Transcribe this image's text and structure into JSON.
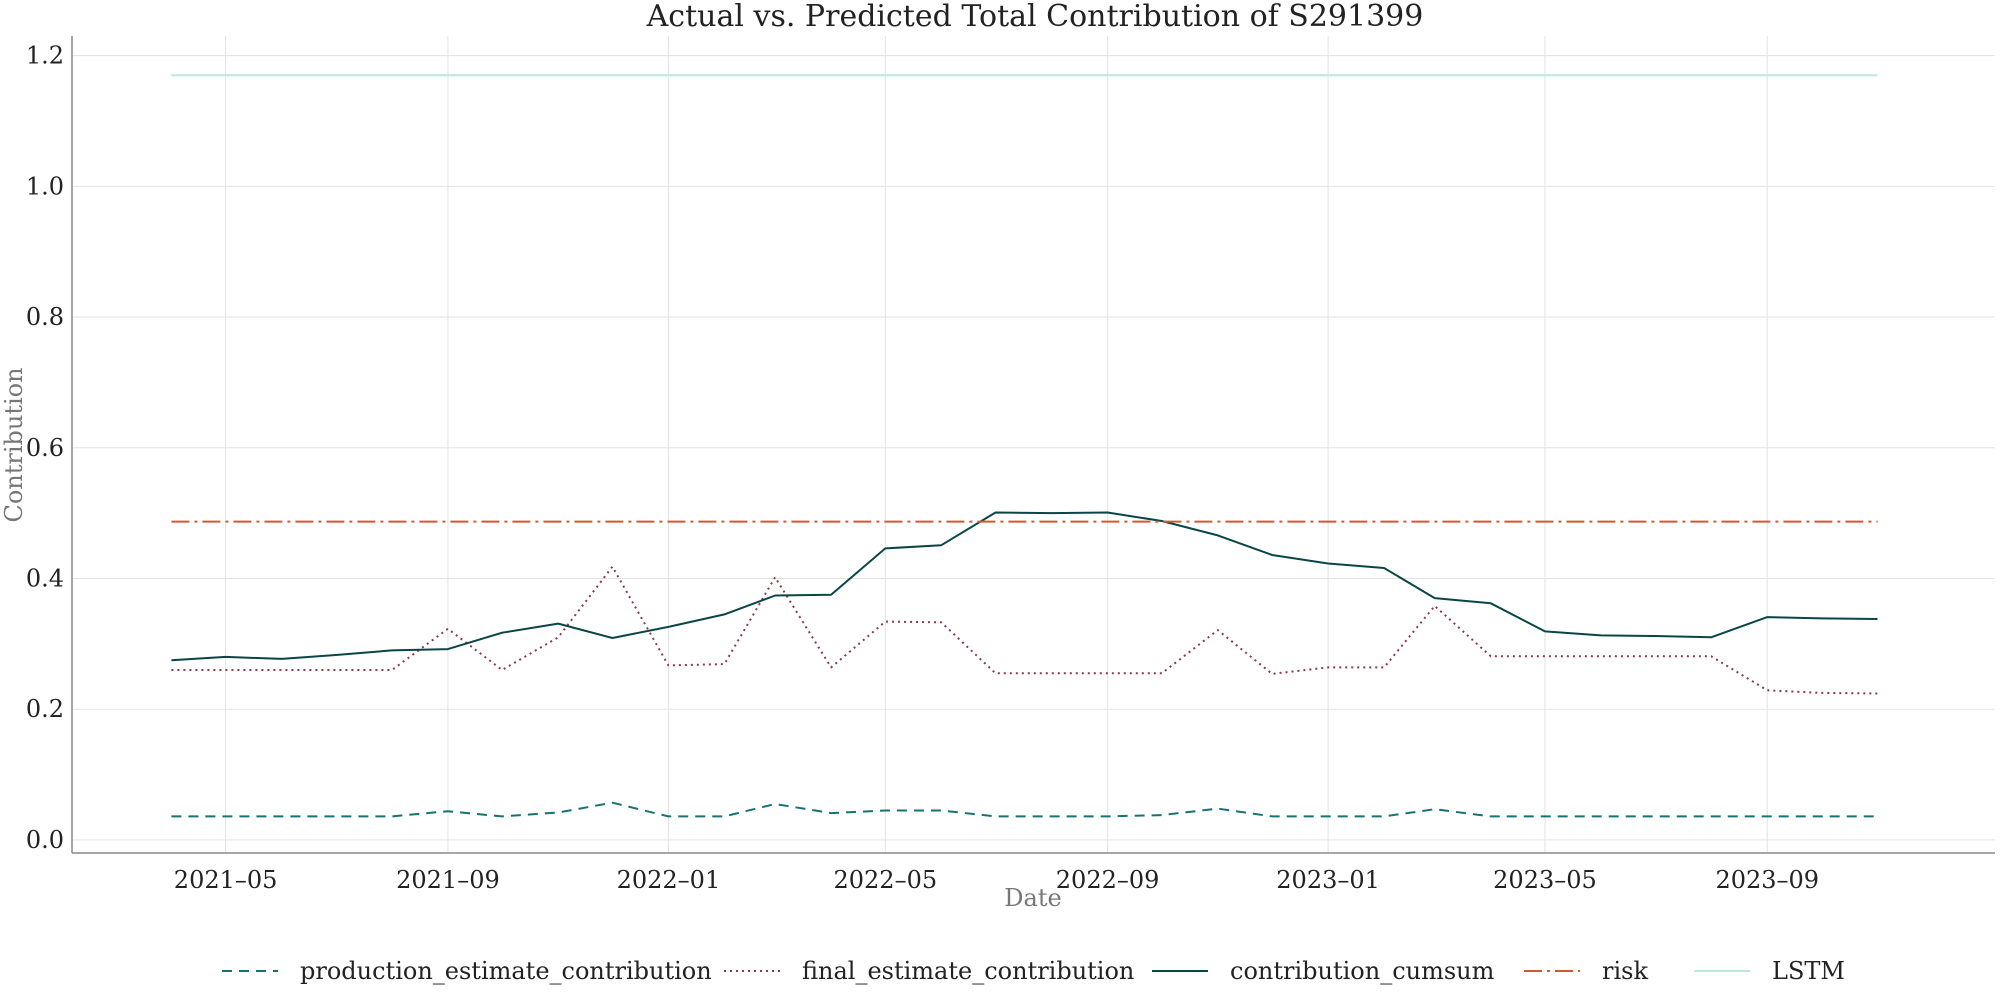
{
  "chart_data": {
    "type": "line",
    "title": "Actual vs. Predicted Total Contribution of S291399",
    "xlabel": "Date",
    "ylabel": "Contribution",
    "ylim": [
      -0.02,
      1.23
    ],
    "y_ticks": [
      0.0,
      0.2,
      0.4,
      0.6,
      0.8,
      1.0,
      1.2
    ],
    "y_tick_labels": [
      "0.0",
      "0.2",
      "0.4",
      "0.6",
      "0.8",
      "1.0",
      "1.2"
    ],
    "x_ticks": [
      "2021-05-01",
      "2021-09-01",
      "2022-01-01",
      "2022-05-01",
      "2022-09-01",
      "2023-01-01",
      "2023-05-01",
      "2023-09-01"
    ],
    "x_tick_labels": [
      "2021–05",
      "2021–09",
      "2022–01",
      "2022–05",
      "2022–09",
      "2023–01",
      "2023–05",
      "2023–09"
    ],
    "xlim": [
      "2021-02-05",
      "2024-01-05"
    ],
    "grid": true,
    "legend_position": "bottom",
    "x": [
      "2021-04-01",
      "2021-05-01",
      "2021-06-01",
      "2021-07-01",
      "2021-08-01",
      "2021-09-01",
      "2021-10-01",
      "2021-11-01",
      "2021-12-01",
      "2022-01-01",
      "2022-02-01",
      "2022-03-01",
      "2022-04-01",
      "2022-05-01",
      "2022-06-01",
      "2022-07-01",
      "2022-08-01",
      "2022-09-01",
      "2022-10-01",
      "2022-11-01",
      "2022-12-01",
      "2023-01-01",
      "2023-02-01",
      "2023-03-01",
      "2023-04-01",
      "2023-05-01",
      "2023-06-01",
      "2023-07-01",
      "2023-08-01",
      "2023-09-01",
      "2023-10-01",
      "2023-11-01"
    ],
    "series": [
      {
        "name": "production_estimate_contribution",
        "color": "#177373",
        "dash": "10,7",
        "values": [
          0.036,
          0.036,
          0.036,
          0.036,
          0.036,
          0.044,
          0.036,
          0.042,
          0.057,
          0.036,
          0.036,
          0.055,
          0.041,
          0.045,
          0.045,
          0.036,
          0.036,
          0.036,
          0.038,
          0.048,
          0.036,
          0.036,
          0.036,
          0.047,
          0.036,
          0.036,
          0.036,
          0.036,
          0.036,
          0.036,
          0.036,
          0.036
        ]
      },
      {
        "name": "final_estimate_contribution",
        "color": "#8a3a4a",
        "dash": "2,4",
        "values": [
          0.26,
          0.26,
          0.26,
          0.26,
          0.26,
          0.323,
          0.26,
          0.31,
          0.418,
          0.267,
          0.269,
          0.402,
          0.264,
          0.334,
          0.333,
          0.255,
          0.255,
          0.255,
          0.255,
          0.321,
          0.254,
          0.264,
          0.264,
          0.358,
          0.281,
          0.281,
          0.281,
          0.281,
          0.281,
          0.229,
          0.225,
          0.224
        ]
      },
      {
        "name": "contribution_cumsum",
        "color": "#0a4646",
        "dash": "",
        "values": [
          0.275,
          0.28,
          0.277,
          0.283,
          0.29,
          0.292,
          0.317,
          0.331,
          0.309,
          0.326,
          0.345,
          0.374,
          0.375,
          0.446,
          0.451,
          0.501,
          0.5,
          0.501,
          0.488,
          0.466,
          0.436,
          0.423,
          0.416,
          0.37,
          0.362,
          0.319,
          0.313,
          0.312,
          0.31,
          0.341,
          0.339,
          0.338
        ]
      },
      {
        "name": "risk",
        "color": "#d05a30",
        "dash": "18,5,3,5",
        "values": [
          0.487,
          0.487,
          0.487,
          0.487,
          0.487,
          0.487,
          0.487,
          0.487,
          0.487,
          0.487,
          0.487,
          0.487,
          0.487,
          0.487,
          0.487,
          0.487,
          0.487,
          0.487,
          0.487,
          0.487,
          0.487,
          0.487,
          0.487,
          0.487,
          0.487,
          0.487,
          0.487,
          0.487,
          0.487,
          0.487,
          0.487,
          0.487
        ]
      },
      {
        "name": "LSTM",
        "color": "#b9e8e0",
        "dash": "",
        "values": [
          1.17,
          1.17,
          1.17,
          1.17,
          1.17,
          1.17,
          1.17,
          1.17,
          1.17,
          1.17,
          1.17,
          1.17,
          1.17,
          1.17,
          1.17,
          1.17,
          1.17,
          1.17,
          1.17,
          1.17,
          1.17,
          1.17,
          1.17,
          1.17,
          1.17,
          1.17,
          1.17,
          1.17,
          1.17,
          1.17,
          1.17,
          1.17
        ]
      }
    ]
  }
}
